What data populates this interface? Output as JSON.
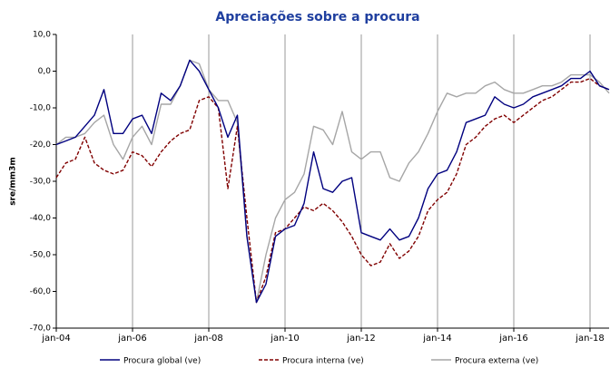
{
  "chart_data": {
    "type": "line",
    "title": "Apreciações sobre a procura",
    "y_label": "sre/mm3m",
    "categories": [
      "jan-04",
      null,
      null,
      null,
      null,
      null,
      null,
      null,
      "jan-06",
      null,
      null,
      null,
      null,
      null,
      null,
      null,
      "jan-08",
      null,
      null,
      null,
      null,
      null,
      null,
      null,
      "jan-10",
      null,
      null,
      null,
      null,
      null,
      null,
      null,
      "jan-12",
      null,
      null,
      null,
      null,
      null,
      null,
      null,
      "jan-14",
      null,
      null,
      null,
      null,
      null,
      null,
      null,
      "jan-16",
      null,
      null,
      null,
      null,
      null,
      null,
      null,
      "jan-18",
      null,
      null
    ],
    "series": [
      {
        "name": "Procura global (ve)",
        "color": "#00007f",
        "dash": false,
        "values": [
          -20,
          -19,
          -18,
          -15,
          -12,
          -5,
          -17,
          -17,
          -13,
          -12,
          -17,
          -6,
          -8,
          -4,
          3,
          0,
          -5,
          -10,
          -18,
          -12,
          -45,
          -63,
          -58,
          -45,
          -43,
          -42,
          -36,
          -22,
          -32,
          -33,
          -30,
          -29,
          -44,
          -45,
          -46,
          -43,
          -46,
          -45,
          -40,
          -32,
          -28,
          -27,
          -22,
          -14,
          -13,
          -12,
          -7,
          -9,
          -10,
          -9,
          -7,
          -6,
          -5,
          -4,
          -2,
          -2,
          0,
          -4,
          -5
        ]
      },
      {
        "name": "Procura interna (ve)",
        "color": "#800000",
        "dash": true,
        "values": [
          -29,
          -25,
          -24,
          -18,
          -25,
          -27,
          -28,
          -27,
          -22,
          -23,
          -26,
          -22,
          -19,
          -17,
          -16,
          -8,
          -7,
          -10,
          -32,
          -15,
          -40,
          -63,
          -56,
          -44,
          -43,
          -40,
          -37,
          -38,
          -36,
          -38,
          -41,
          -45,
          -50,
          -53,
          -52,
          -47,
          -51,
          -49,
          -45,
          -38,
          -35,
          -33,
          -28,
          -20,
          -18,
          -15,
          -13,
          -12,
          -14,
          -12,
          -10,
          -8,
          -7,
          -5,
          -3,
          -3,
          -2,
          -4,
          -5
        ]
      },
      {
        "name": "Procura externa (ve)",
        "color": "#a6a6a6",
        "dash": false,
        "values": [
          -20,
          -18,
          -18,
          -17,
          -14,
          -12,
          -20,
          -24,
          -18,
          -15,
          -20,
          -9,
          -9,
          -4,
          3,
          2,
          -5,
          -8,
          -8,
          -14,
          -45,
          -63,
          -50,
          -40,
          -35,
          -33,
          -28,
          -15,
          -16,
          -20,
          -11,
          -22,
          -24,
          -22,
          -22,
          -29,
          -30,
          -25,
          -22,
          -17,
          -11,
          -6,
          -7,
          -6,
          -6,
          -4,
          -3,
          -5,
          -6,
          -6,
          -5,
          -4,
          -4,
          -3,
          -1,
          -1,
          -1,
          -3,
          -6
        ]
      }
    ],
    "ylim": [
      -70,
      10
    ],
    "yticks": [
      {
        "value": -70,
        "label": "-70,0"
      },
      {
        "value": -60,
        "label": "-60,0"
      },
      {
        "value": -50,
        "label": "-50,0"
      },
      {
        "value": -40,
        "label": "-40,0"
      },
      {
        "value": -30,
        "label": "-30,0"
      },
      {
        "value": -20,
        "label": "-20,0"
      },
      {
        "value": -10,
        "label": "-10,0"
      },
      {
        "value": 0,
        "label": "0,0"
      },
      {
        "value": 10,
        "label": "10,0"
      }
    ],
    "grid": true
  }
}
